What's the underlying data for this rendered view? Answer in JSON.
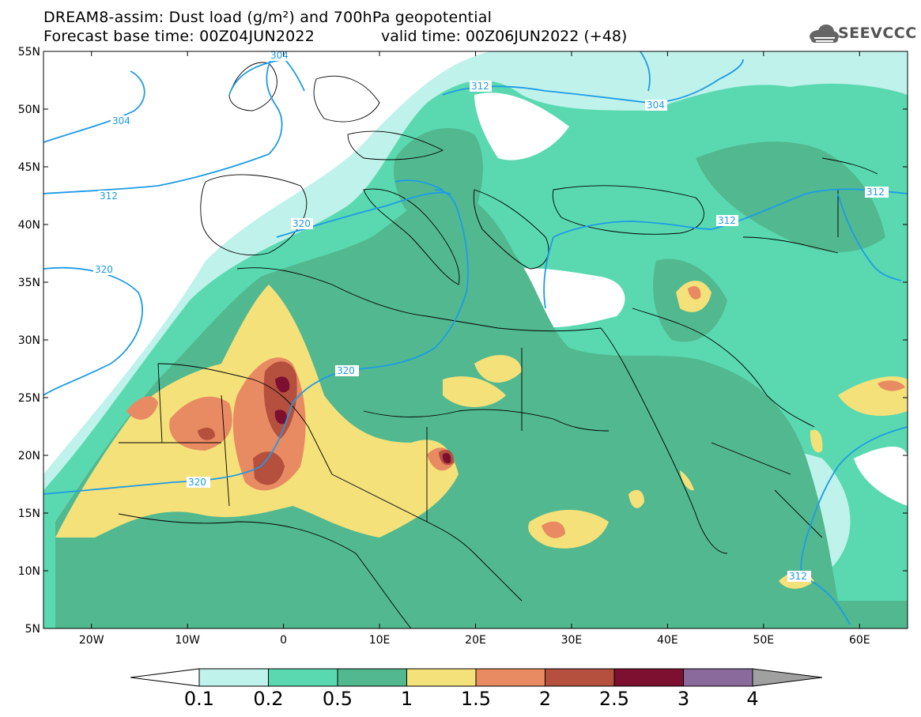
{
  "header": {
    "title_line1": "DREAM8-assim: Dust load (g/m²) and 700hPa geopotential",
    "title_line2": "Forecast base time: 00Z04JUN2022",
    "valid_time": "valid time: 00Z06JUN2022 (+48)",
    "logo_text": "SEEVCCC",
    "logo_icon": "cloud-icon"
  },
  "map": {
    "lon_range": [
      -25,
      65
    ],
    "lat_range": [
      5,
      55
    ],
    "lat_ticks": [
      "55N",
      "50N",
      "45N",
      "40N",
      "35N",
      "30N",
      "25N",
      "20N",
      "15N",
      "10N",
      "5N"
    ],
    "lon_ticks": [
      "20W",
      "10W",
      "0",
      "10E",
      "20E",
      "30E",
      "40E",
      "50E",
      "60E"
    ],
    "contour_labels": [
      "304",
      "312",
      "304",
      "312",
      "320",
      "320",
      "320",
      "320",
      "312",
      "312",
      "304",
      "312"
    ]
  },
  "colorbar": {
    "labels": [
      "0.1",
      "0.2",
      "0.5",
      "1",
      "1.5",
      "2",
      "2.5",
      "3",
      "4"
    ],
    "colors": [
      "#ffffff",
      "#bff2ea",
      "#5ad9b0",
      "#52b88f",
      "#f4e17a",
      "#e88a62",
      "#b54f3e",
      "#7d1030",
      "#8a6a9c",
      "#a0a0a0"
    ]
  },
  "legend_colors": {
    "very_light": "#bff2ea",
    "light": "#5ad9b0",
    "medium": "#52b88f",
    "yellow": "#f4e17a",
    "orange": "#e88a62",
    "brown": "#b54f3e",
    "maroon": "#7d1030"
  }
}
